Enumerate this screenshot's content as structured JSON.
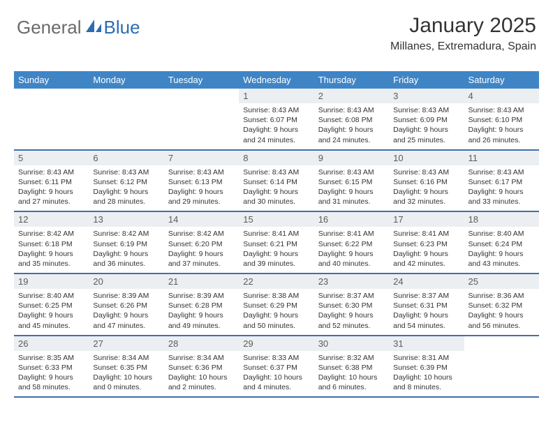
{
  "logo": {
    "part1": "General",
    "part2": "Blue"
  },
  "title": "January 2025",
  "location": "Millanes, Extremadura, Spain",
  "header_bg": "#3f85c6",
  "row_border": "#3f6fa8",
  "daynum_bg": "#eceff1",
  "weekdays": [
    "Sunday",
    "Monday",
    "Tuesday",
    "Wednesday",
    "Thursday",
    "Friday",
    "Saturday"
  ],
  "weeks": [
    [
      null,
      null,
      null,
      {
        "n": "1",
        "sr": "8:43 AM",
        "ss": "6:07 PM",
        "dl": "9 hours and 24 minutes."
      },
      {
        "n": "2",
        "sr": "8:43 AM",
        "ss": "6:08 PM",
        "dl": "9 hours and 24 minutes."
      },
      {
        "n": "3",
        "sr": "8:43 AM",
        "ss": "6:09 PM",
        "dl": "9 hours and 25 minutes."
      },
      {
        "n": "4",
        "sr": "8:43 AM",
        "ss": "6:10 PM",
        "dl": "9 hours and 26 minutes."
      }
    ],
    [
      {
        "n": "5",
        "sr": "8:43 AM",
        "ss": "6:11 PM",
        "dl": "9 hours and 27 minutes."
      },
      {
        "n": "6",
        "sr": "8:43 AM",
        "ss": "6:12 PM",
        "dl": "9 hours and 28 minutes."
      },
      {
        "n": "7",
        "sr": "8:43 AM",
        "ss": "6:13 PM",
        "dl": "9 hours and 29 minutes."
      },
      {
        "n": "8",
        "sr": "8:43 AM",
        "ss": "6:14 PM",
        "dl": "9 hours and 30 minutes."
      },
      {
        "n": "9",
        "sr": "8:43 AM",
        "ss": "6:15 PM",
        "dl": "9 hours and 31 minutes."
      },
      {
        "n": "10",
        "sr": "8:43 AM",
        "ss": "6:16 PM",
        "dl": "9 hours and 32 minutes."
      },
      {
        "n": "11",
        "sr": "8:43 AM",
        "ss": "6:17 PM",
        "dl": "9 hours and 33 minutes."
      }
    ],
    [
      {
        "n": "12",
        "sr": "8:42 AM",
        "ss": "6:18 PM",
        "dl": "9 hours and 35 minutes."
      },
      {
        "n": "13",
        "sr": "8:42 AM",
        "ss": "6:19 PM",
        "dl": "9 hours and 36 minutes."
      },
      {
        "n": "14",
        "sr": "8:42 AM",
        "ss": "6:20 PM",
        "dl": "9 hours and 37 minutes."
      },
      {
        "n": "15",
        "sr": "8:41 AM",
        "ss": "6:21 PM",
        "dl": "9 hours and 39 minutes."
      },
      {
        "n": "16",
        "sr": "8:41 AM",
        "ss": "6:22 PM",
        "dl": "9 hours and 40 minutes."
      },
      {
        "n": "17",
        "sr": "8:41 AM",
        "ss": "6:23 PM",
        "dl": "9 hours and 42 minutes."
      },
      {
        "n": "18",
        "sr": "8:40 AM",
        "ss": "6:24 PM",
        "dl": "9 hours and 43 minutes."
      }
    ],
    [
      {
        "n": "19",
        "sr": "8:40 AM",
        "ss": "6:25 PM",
        "dl": "9 hours and 45 minutes."
      },
      {
        "n": "20",
        "sr": "8:39 AM",
        "ss": "6:26 PM",
        "dl": "9 hours and 47 minutes."
      },
      {
        "n": "21",
        "sr": "8:39 AM",
        "ss": "6:28 PM",
        "dl": "9 hours and 49 minutes."
      },
      {
        "n": "22",
        "sr": "8:38 AM",
        "ss": "6:29 PM",
        "dl": "9 hours and 50 minutes."
      },
      {
        "n": "23",
        "sr": "8:37 AM",
        "ss": "6:30 PM",
        "dl": "9 hours and 52 minutes."
      },
      {
        "n": "24",
        "sr": "8:37 AM",
        "ss": "6:31 PM",
        "dl": "9 hours and 54 minutes."
      },
      {
        "n": "25",
        "sr": "8:36 AM",
        "ss": "6:32 PM",
        "dl": "9 hours and 56 minutes."
      }
    ],
    [
      {
        "n": "26",
        "sr": "8:35 AM",
        "ss": "6:33 PM",
        "dl": "9 hours and 58 minutes."
      },
      {
        "n": "27",
        "sr": "8:34 AM",
        "ss": "6:35 PM",
        "dl": "10 hours and 0 minutes."
      },
      {
        "n": "28",
        "sr": "8:34 AM",
        "ss": "6:36 PM",
        "dl": "10 hours and 2 minutes."
      },
      {
        "n": "29",
        "sr": "8:33 AM",
        "ss": "6:37 PM",
        "dl": "10 hours and 4 minutes."
      },
      {
        "n": "30",
        "sr": "8:32 AM",
        "ss": "6:38 PM",
        "dl": "10 hours and 6 minutes."
      },
      {
        "n": "31",
        "sr": "8:31 AM",
        "ss": "6:39 PM",
        "dl": "10 hours and 8 minutes."
      },
      null
    ]
  ],
  "labels": {
    "sunrise": "Sunrise:",
    "sunset": "Sunset:",
    "daylight": "Daylight:"
  }
}
